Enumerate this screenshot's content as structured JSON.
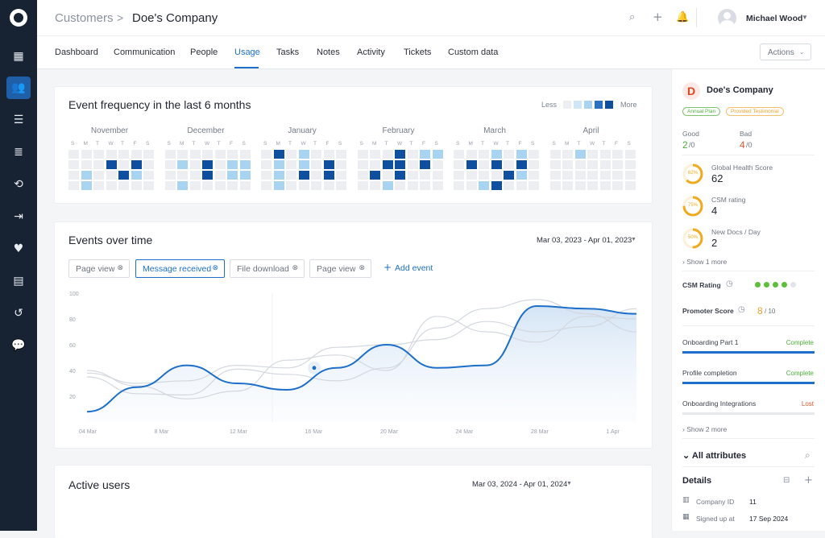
{
  "topbar": {
    "crumb_parent": "Customers",
    "crumb_sep": ">",
    "crumb_current": "Doe's Company",
    "user_name": "Michael Wood"
  },
  "tabs": [
    "Dashboard",
    "Communication",
    "People",
    "Usage",
    "Tasks",
    "Notes",
    "Activity",
    "Tickets",
    "Custom data"
  ],
  "active_tab": "Usage",
  "actions_label": "Actions",
  "frequency": {
    "title": "Event frequency in the last 6 months",
    "legend_less": "Less",
    "legend_more": "More",
    "weekdays": [
      "S",
      "M",
      "T",
      "W",
      "T",
      "F",
      "S"
    ],
    "months": [
      {
        "name": "November",
        "grid": [
          [
            0,
            0,
            0,
            0,
            0,
            0,
            0
          ],
          [
            0,
            0,
            0,
            3,
            0,
            3,
            0
          ],
          [
            0,
            1,
            0,
            0,
            3,
            1,
            0
          ],
          [
            0,
            1,
            0,
            0,
            0,
            0,
            0
          ]
        ]
      },
      {
        "name": "December",
        "grid": [
          [
            0,
            0,
            0,
            0,
            0,
            0,
            0
          ],
          [
            0,
            1,
            0,
            3,
            0,
            1,
            1
          ],
          [
            0,
            0,
            0,
            3,
            0,
            1,
            1
          ],
          [
            0,
            1,
            0,
            0,
            0,
            0,
            0
          ]
        ]
      },
      {
        "name": "January",
        "grid": [
          [
            0,
            3,
            0,
            1,
            0,
            0,
            0
          ],
          [
            0,
            1,
            0,
            1,
            0,
            3,
            0
          ],
          [
            0,
            1,
            0,
            3,
            0,
            3,
            0
          ],
          [
            0,
            1,
            0,
            0,
            0,
            0,
            0
          ]
        ]
      },
      {
        "name": "February",
        "grid": [
          [
            0,
            0,
            0,
            3,
            0,
            1,
            1
          ],
          [
            0,
            0,
            3,
            3,
            0,
            3,
            0
          ],
          [
            0,
            3,
            0,
            3,
            0,
            0,
            0
          ],
          [
            0,
            0,
            1,
            0,
            0,
            0,
            0
          ]
        ]
      },
      {
        "name": "March",
        "grid": [
          [
            0,
            0,
            0,
            1,
            0,
            1,
            0
          ],
          [
            0,
            3,
            0,
            3,
            0,
            3,
            0
          ],
          [
            0,
            0,
            0,
            0,
            3,
            1,
            0
          ],
          [
            0,
            0,
            1,
            3,
            0,
            0,
            0
          ]
        ]
      },
      {
        "name": "April",
        "grid": [
          [
            0,
            0,
            1,
            0,
            0,
            0,
            0
          ],
          [
            0,
            0,
            0,
            0,
            0,
            0,
            0
          ],
          [
            0,
            0,
            0,
            0,
            0,
            0,
            0
          ],
          [
            0,
            0,
            0,
            0,
            0,
            0,
            0
          ]
        ]
      }
    ]
  },
  "events_over_time": {
    "title": "Events over time",
    "date_range": "Mar 03, 2023 - Apr 01, 2023",
    "chips": [
      "Page view",
      "Message received",
      "File download",
      "Page view"
    ],
    "selected_chip": "Message received",
    "add_event": "Add event",
    "chart_data": {
      "type": "line",
      "ylim": [
        0,
        100
      ],
      "y_ticks": [
        100,
        80,
        60,
        40,
        20
      ],
      "x_ticks": [
        "04 Mar",
        "8 Mar",
        "12 Mar",
        "16 Mar",
        "20 Mar",
        "24 Mar",
        "28 Mar",
        "1 Apr"
      ],
      "x": [
        0,
        1,
        2,
        3,
        4,
        5,
        6,
        7,
        8,
        9,
        10,
        11
      ],
      "series": [
        {
          "values": [
            8,
            27,
            44,
            30,
            25,
            42,
            60,
            42,
            44,
            90,
            88,
            84
          ]
        },
        {
          "values": [
            35,
            22,
            21,
            41,
            37,
            32,
            42,
            73,
            88,
            95,
            84,
            70
          ]
        },
        {
          "values": [
            40,
            28,
            18,
            24,
            48,
            52,
            40,
            82,
            70,
            62,
            82,
            80
          ]
        },
        {
          "values": [
            38,
            30,
            32,
            44,
            42,
            58,
            60,
            64,
            78,
            70,
            74,
            88
          ]
        }
      ],
      "highlight": {
        "x": 16,
        "y": 42,
        "label": "16 Mar"
      }
    }
  },
  "active_users": {
    "title": "Active users",
    "date_range": "Mar 03, 2024 - Apr 01, 2024"
  },
  "company": {
    "initial": "D",
    "name": "Doe's Company",
    "badges": [
      "Annual Plan",
      "Provided Testimonial"
    ],
    "good_label": "Good",
    "good_value": "2",
    "good_total": "/0",
    "bad_label": "Bad",
    "bad_value": "4",
    "bad_total": "/0",
    "metrics": [
      {
        "label": "Global Health Score",
        "value": "62",
        "pct": "62%",
        "fraction": 0.62
      },
      {
        "label": "CSM rating",
        "value": "4",
        "pct": "75%",
        "fraction": 0.75
      },
      {
        "label": "New Docs / Day",
        "value": "2",
        "pct": "50%",
        "fraction": 0.5
      }
    ],
    "show_more": "Show 1 more",
    "csm_rating_label": "CSM Rating",
    "csm_rating_value": 4,
    "csm_rating_max": 5,
    "promoter_label": "Promoter Score",
    "promoter_value": "8",
    "promoter_max": "/ 10",
    "progress": [
      {
        "label": "Onboarding Part 1",
        "status": "Complete",
        "fraction": 1.0,
        "color": "#1d6fc9",
        "status_color": "#4caf3a"
      },
      {
        "label": "Profile completion",
        "status": "Complete",
        "fraction": 1.0,
        "color": "#1d6fc9",
        "status_color": "#4caf3a"
      },
      {
        "label": "Onboarding Integrations",
        "status": "Lost",
        "fraction": 0,
        "color": "#1d6fc9",
        "status_color": "#e0572d"
      }
    ],
    "show_more_2": "Show 2 more",
    "all_attributes": "All attributes",
    "details": "Details",
    "company_id_label": "Company ID",
    "company_id": "11",
    "signed_up_label": "Signed up at",
    "signed_up": "17 Sep 2024"
  }
}
